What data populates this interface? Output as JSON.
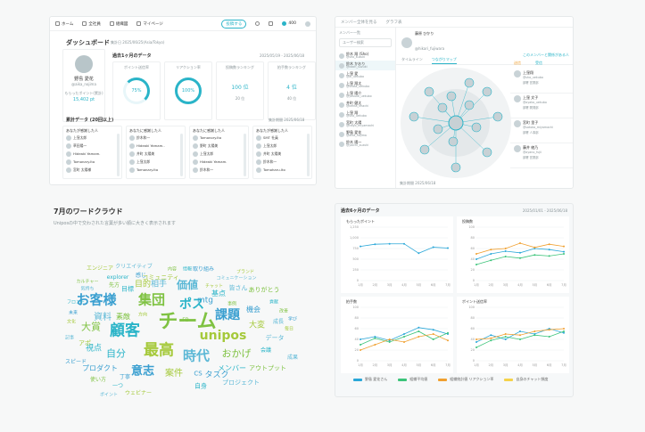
{
  "dashboard": {
    "nav": [
      "ホーム",
      "全社員",
      "組織図",
      "マイページ"
    ],
    "post_button": "投稿する",
    "points": "400",
    "title": "ダッシュボード",
    "period_label": "集計日 2025/06/25(Asia/Tokyo)",
    "profile_name": "野島 愛花",
    "profile_id": "@aika_nojima",
    "profile_sub": "もらったポイント(累計)",
    "profile_points": "15,402 pt",
    "stats_title": "過去1ヶ月のデータ",
    "stats_range": "2025/05/19 - 2025/06/18",
    "stats": [
      {
        "label": "ポイント送信率",
        "value": "75%"
      },
      {
        "label": "リアクション率",
        "value": "100%"
      },
      {
        "label": "投稿数ランキング",
        "value": "100 位",
        "sub": "20 位"
      },
      {
        "label": "拍手数ランキング",
        "value": "4 位",
        "sub": "40 位"
      }
    ],
    "list_title": "累計データ (20回以上)",
    "list_range": "集計期間 2025/06/18",
    "columns": [
      {
        "header": "あなたが感謝した人",
        "names": [
          "上窪太郎",
          "草田陽一",
          "Hideaki Yamam.",
          "Tomonary.Ito",
          "宮町 太陽様"
        ]
      },
      {
        "header": "あなたに感謝した人",
        "names": [
          "鈴木和一",
          "Hideaki Yamam..",
          "井町 太陽美",
          "上窪太郎",
          "Tomonary.Ito"
        ]
      },
      {
        "header": "あなたに感謝した人",
        "names": [
          "Tomonory.Ito",
          "野町 太陽美",
          "上窪太郎",
          "Hideaki Yamam.",
          "鈴木和一"
        ]
      },
      {
        "header": "あなたが感謝した人",
        "names": [
          "SMT 社員",
          "上窪太郎",
          "井町 太陽美",
          "鈴木和一",
          "Tomoharu.Ito"
        ]
      }
    ]
  },
  "network": {
    "top_tabs": [
      "メンバー全体を見る",
      "グラフ表"
    ],
    "search_placeholder": "ユーザー検索",
    "member_header": "メンバー一覧",
    "members": [
      {
        "name": "鈴木 翔 (Sho)",
        "id": "@sho_suzuki"
      },
      {
        "name": "鈴木 かおり",
        "id": "@kaori_suzuki"
      },
      {
        "name": "上窪 愛",
        "id": "@ai_uekubo"
      },
      {
        "name": "上窪 翔太",
        "id": "@shota_uekubo"
      },
      {
        "name": "上窪 陽介",
        "id": "@yosuke_uekubo"
      },
      {
        "name": "井町 健太",
        "id": "@kenta_imachi"
      },
      {
        "name": "上窪 翔",
        "id": "@sho_uekubo"
      },
      {
        "name": "宮町 太陽",
        "id": "@taiyo_miyamachi"
      },
      {
        "name": "野島 愛花",
        "id": "@aika_nojima"
      },
      {
        "name": "鈴木 陽一",
        "id": "@yoichi_suzuki"
      }
    ],
    "profile_name": "藤原 ひかり",
    "profile_id": "@hikari_fujiwara",
    "sub_tabs": [
      "タイムライン",
      "つながりマップ"
    ],
    "right_title": "このメンバーと関係がある人",
    "right_tabs": [
      "送信",
      "受信"
    ],
    "right_people": [
      {
        "name": "上窪翔",
        "id": "@sho_uekubo",
        "sub": "部署 営業部"
      },
      {
        "name": "上窪 文子",
        "id": "@ayako_uekubo",
        "sub": "部署 開発部"
      },
      {
        "name": "宮町 里子",
        "id": "@satoko_miyamachi",
        "sub": "部署 人事部"
      },
      {
        "name": "藤井 綾乃",
        "id": "@ayano_fujii",
        "sub": "部署 営業部"
      }
    ],
    "footer": "集計期間 2025/06/18"
  },
  "cloud": {
    "title": "7月のワードクラウド",
    "subtitle": "Uniposの中で交わされた言葉が多い順に大きく表示されます",
    "words": [
      "チーム",
      "顧客",
      "お客様",
      "最高",
      "時代",
      "集団",
      "ポス",
      "課題",
      "unipos",
      "価値",
      "大賞",
      "自分",
      "意志",
      "案件",
      "資料",
      "おかげ",
      "メンバー",
      "タスク",
      "目的",
      "相手",
      "素敵",
      "視点",
      "プロダクト",
      "エンジニア",
      "クリエイティブ",
      "内容",
      "情報",
      "取り組み",
      "ブランド",
      "コミュニケーション",
      "カルチャー",
      "explorer",
      "感じ",
      "コミュニティ",
      "気持ち",
      "先方",
      "目標",
      "mtg",
      "チャット",
      "皆さん",
      "ありがとう",
      "基点",
      "機会",
      "大変",
      "データ",
      "アウトプット",
      "フロント",
      "スピード",
      "アポ",
      "記事",
      "使い方",
      "一つ",
      "丁寧",
      "ウェビナー",
      "ポイント",
      "事例",
      "自身",
      "CS",
      "方向",
      "プロジェクト",
      "FB",
      "貢献",
      "未来",
      "文化",
      "成長",
      "改善",
      "会議",
      "学び",
      "毎日",
      "成果"
    ]
  },
  "charts_panel": {
    "title": "過去6ヶ月のデータ",
    "range": "2025/01/01 - 2025/06/18",
    "legend": [
      "野島 愛花さん",
      "組織平均値",
      "組織統計値 リアクション率",
      "自身のチャット頻度"
    ]
  },
  "chart_data": [
    {
      "type": "line",
      "title": "もらったポイント",
      "categories": [
        "1月",
        "2月",
        "3月",
        "4月",
        "5月",
        "6月",
        "7月"
      ],
      "ylim": [
        0,
        1250
      ],
      "series": [
        {
          "name": "",
          "values": [
            800,
            850,
            860,
            860,
            640,
            780,
            760
          ]
        }
      ]
    },
    {
      "type": "line",
      "title": "投稿数",
      "categories": [
        "1月",
        "2月",
        "3月",
        "4月",
        "5月",
        "6月",
        "7月"
      ],
      "ylim": [
        0,
        100
      ],
      "series": [
        {
          "name": "",
          "values": [
            40,
            50,
            55,
            52,
            60,
            58,
            54
          ]
        },
        {
          "name": "",
          "values": [
            30,
            38,
            45,
            42,
            48,
            46,
            50
          ]
        },
        {
          "name": "",
          "values": [
            50,
            58,
            60,
            70,
            62,
            68,
            64
          ]
        }
      ]
    },
    {
      "type": "line",
      "title": "拍手数",
      "categories": [
        "1月",
        "2月",
        "3月",
        "4月",
        "5月",
        "6月",
        "7月"
      ],
      "ylim": [
        0,
        100
      ],
      "series": [
        {
          "name": "",
          "values": [
            40,
            45,
            38,
            50,
            62,
            58,
            50
          ]
        },
        {
          "name": "",
          "values": [
            30,
            42,
            35,
            45,
            55,
            40,
            52
          ]
        },
        {
          "name": "",
          "values": [
            20,
            30,
            40,
            35,
            45,
            50,
            38
          ]
        }
      ]
    },
    {
      "type": "line",
      "title": "ポイント送信率",
      "categories": [
        "1月",
        "2月",
        "3月",
        "4月",
        "5月",
        "6月",
        "7月"
      ],
      "ylim": [
        0,
        100
      ],
      "series": [
        {
          "name": "",
          "values": [
            35,
            48,
            40,
            55,
            50,
            60,
            52
          ]
        },
        {
          "name": "",
          "values": [
            25,
            38,
            45,
            40,
            48,
            45,
            55
          ]
        },
        {
          "name": "",
          "values": [
            40,
            42,
            50,
            48,
            55,
            58,
            60
          ]
        }
      ]
    }
  ]
}
